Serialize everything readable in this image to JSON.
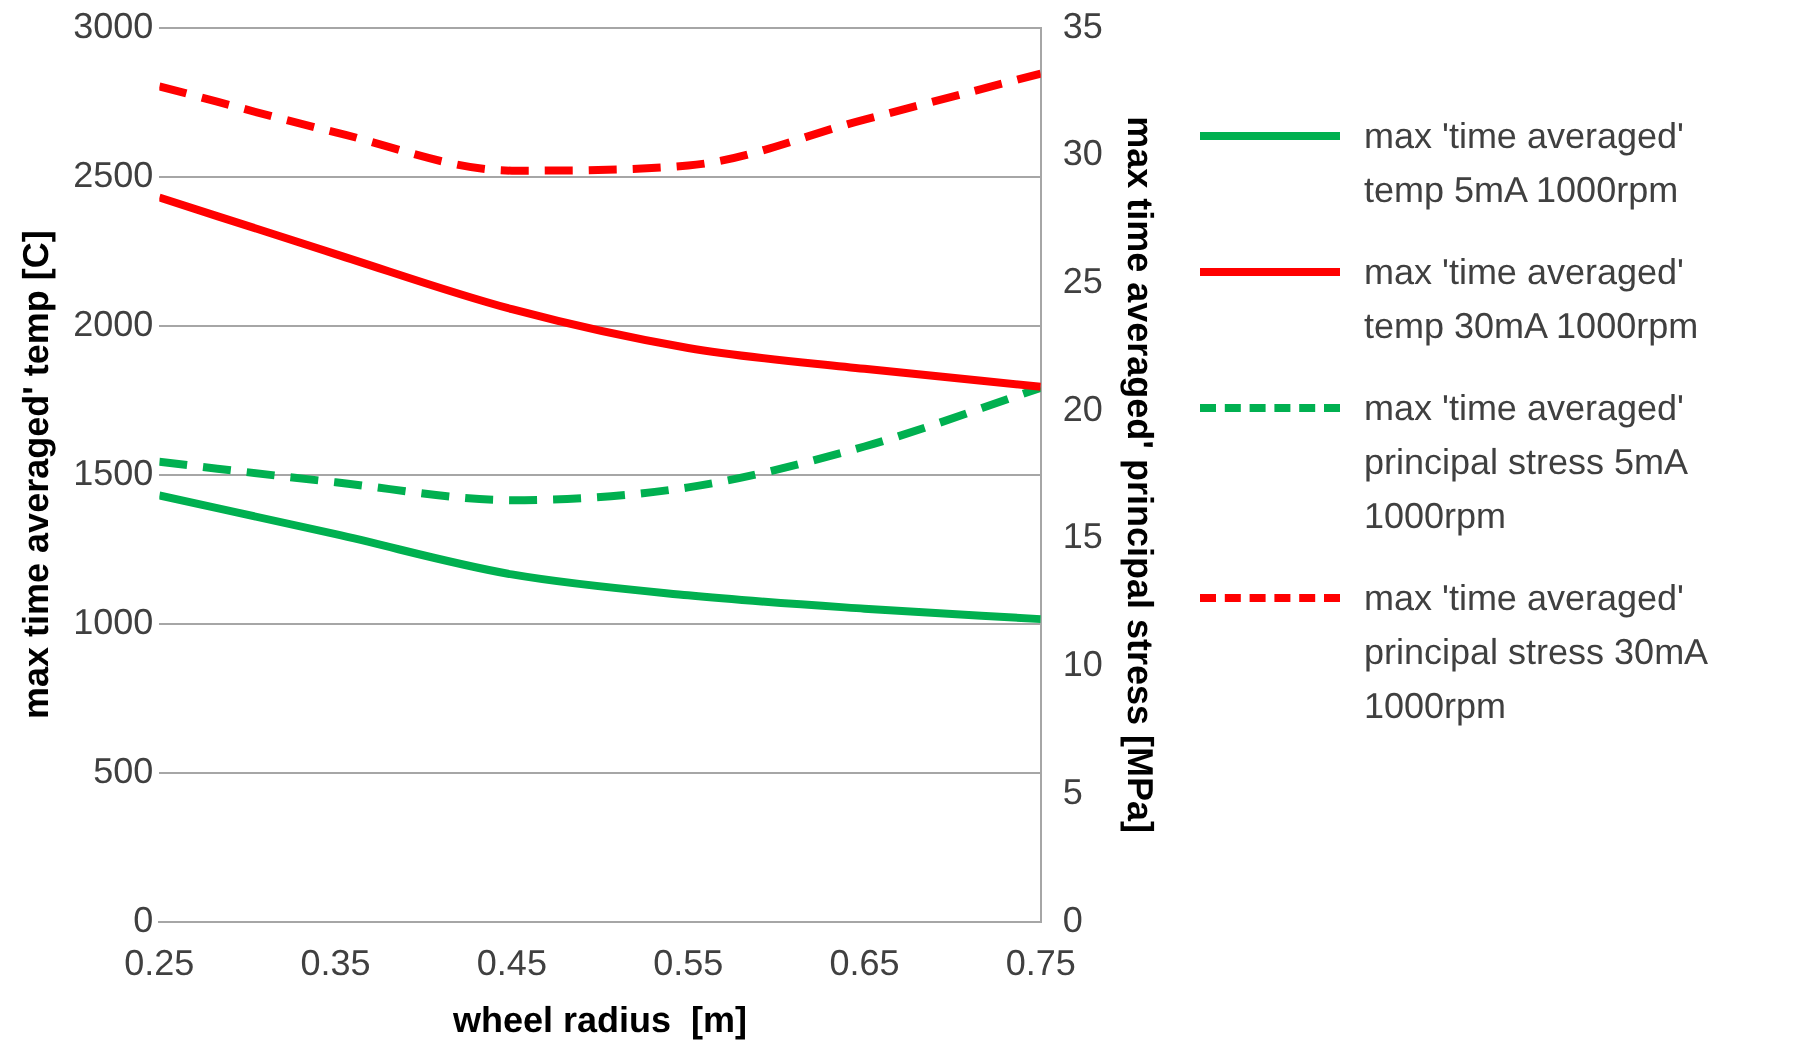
{
  "chart_data": {
    "type": "line",
    "xlabel": "wheel radius  [m]",
    "ylabel": "max time averaged' temp [C]",
    "y2label": "max time averaged' principal stress [MPa]",
    "x": [
      0.25,
      0.35,
      0.45,
      0.55,
      0.65,
      0.75
    ],
    "series": [
      {
        "name": "max 'time averaged' temp 5mA 1000rpm",
        "color": "#00b050",
        "values": [
          1430,
          1300,
          1165,
          1095,
          1050,
          1015
        ],
        "line_style": "solid"
      },
      {
        "name": "max 'time averaged' temp 30mA 1000rpm",
        "color": "#ff0000",
        "values": [
          2430,
          2240,
          2055,
          1925,
          1855,
          1795
        ],
        "line_style": "solid"
      },
      {
        "name": "max 'time averaged' principal stress 5mA 1000rpm",
        "color": "#00b050",
        "values": [
          18.0,
          17.2,
          16.5,
          17.0,
          18.6,
          20.9
        ],
        "line_style": "dashed",
        "axis": "y2"
      },
      {
        "name": "max 'time averaged' principal stress 30mA 1000rpm",
        "color": "#ff0000",
        "values": [
          32.7,
          30.9,
          29.4,
          29.6,
          31.4,
          33.2
        ],
        "line_style": "dashed",
        "axis": "y2"
      }
    ],
    "xlim": [
      0.25,
      0.75
    ],
    "xticks": [
      0.25,
      0.35,
      0.45,
      0.55,
      0.65,
      0.75
    ],
    "ylim": [
      0,
      3000
    ],
    "yticks": [
      0,
      500,
      1000,
      1500,
      2000,
      2500,
      3000
    ],
    "y2lim": [
      0,
      35
    ],
    "y2ticks": [
      0,
      5,
      10,
      15,
      20,
      25,
      30,
      35
    ],
    "grid": "y",
    "legend": "right",
    "marker": "none"
  }
}
